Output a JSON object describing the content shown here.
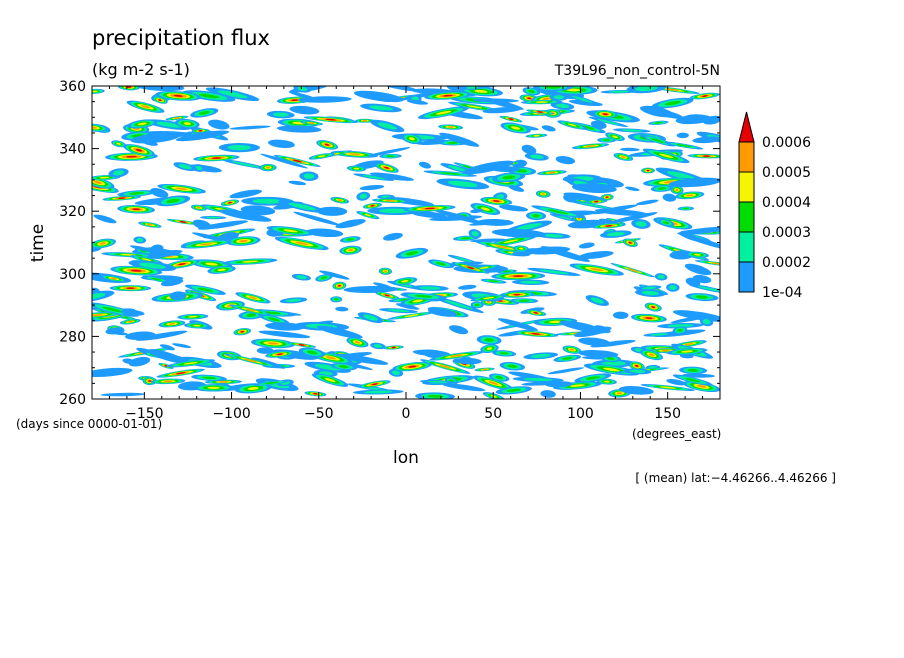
{
  "chart_data": {
    "type": "heatmap",
    "title": "precipitation flux",
    "units": "(kg m-2 s-1)",
    "run_label": "T39L96_non_control-5N",
    "xlabel": "lon",
    "x_units": "(degrees_east)",
    "ylabel": "time",
    "y_units": "(days since 0000-01-01)",
    "xlim": [
      -180,
      180
    ],
    "ylim": [
      260,
      360
    ],
    "x_ticks": [
      -150,
      -100,
      -50,
      0,
      50,
      100,
      150
    ],
    "y_ticks": [
      260,
      280,
      300,
      320,
      340,
      360
    ],
    "x_tick_labels": [
      "−150",
      "−100",
      "−50",
      "0",
      "50",
      "100",
      "150"
    ],
    "y_tick_labels": [
      "260",
      "280",
      "300",
      "320",
      "340",
      "360"
    ],
    "colorbar": {
      "levels": [
        0.0001,
        0.0002,
        0.0003,
        0.0004,
        0.0005,
        0.0006
      ],
      "level_labels": [
        "1e-04",
        "0.0002",
        "0.0003",
        "0.0004",
        "0.0005",
        "0.0006"
      ],
      "colors": [
        "#1e9bff",
        "#00f0a0",
        "#00dc00",
        "#f5f500",
        "#ff9b00",
        "#e60000"
      ],
      "extend": "max"
    },
    "note": "[ (mean) lat:−4.46266..4.46266 ]"
  }
}
